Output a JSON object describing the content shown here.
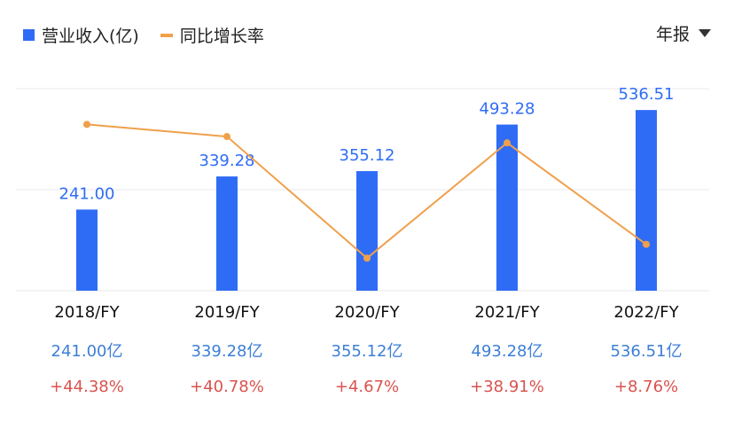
{
  "legend": {
    "bar_label": "营业收入(亿)",
    "line_label": "同比增长率"
  },
  "period_selector": {
    "label": "年报"
  },
  "colors": {
    "bar": "#2f6cf6",
    "line": "#f0a04b",
    "value_label": "#2f6cf6",
    "grid": "#e9e9ee",
    "axis_text": "#111111"
  },
  "chart_data": {
    "type": "bar",
    "categories": [
      "2018/FY",
      "2019/FY",
      "2020/FY",
      "2021/FY",
      "2022/FY"
    ],
    "series": [
      {
        "name": "营业收入(亿)",
        "type": "bar",
        "values": [
          241.0,
          339.28,
          355.12,
          493.28,
          536.51
        ],
        "labels": [
          "241.00",
          "339.28",
          "355.12",
          "493.28",
          "536.51"
        ],
        "axis": "left"
      },
      {
        "name": "同比增长率",
        "type": "line",
        "values": [
          44.38,
          40.78,
          4.67,
          38.91,
          8.76
        ],
        "axis": "right"
      }
    ],
    "ylim": [
      0,
      600
    ],
    "y2lim": [
      -5,
      55
    ],
    "grid": true,
    "legend_position": "top-left"
  },
  "summary": {
    "values": [
      "241.00亿",
      "339.28亿",
      "355.12亿",
      "493.28亿",
      "536.51亿"
    ],
    "growth": [
      "+44.38%",
      "+40.78%",
      "+4.67%",
      "+38.91%",
      "+8.76%"
    ]
  }
}
